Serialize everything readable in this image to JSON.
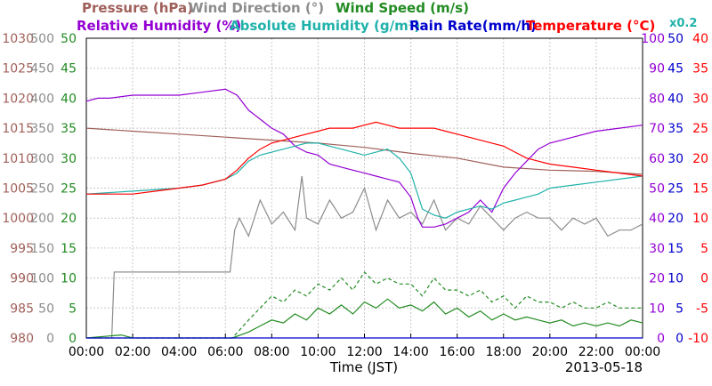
{
  "chart_data": {
    "type": "line",
    "date": "2013-05-18",
    "xlabel": "Time (JST)",
    "x_ticks": [
      "00:00",
      "02:00",
      "04:00",
      "06:00",
      "08:00",
      "10:00",
      "12:00",
      "14:00",
      "16:00",
      "18:00",
      "20:00",
      "22:00",
      "00:00"
    ],
    "x_range_hours": [
      0,
      24
    ],
    "grid": true,
    "legend": {
      "row1": [
        {
          "text": "Pressure (hPa)",
          "color": "#a0605a"
        },
        {
          "text": "Wind Direction (°)",
          "color": "#8c8c8c"
        },
        {
          "text": "Wind Speed (m/s)",
          "color": "#228b22"
        }
      ],
      "row2": [
        {
          "text": "Relative Humidity (%)",
          "color": "#9400d3"
        },
        {
          "text": "Absolute Humidity (g/m³)",
          "color": "#20b2aa"
        },
        {
          "text": "Rain Rate(mm/h)",
          "color": "#0000cd"
        },
        {
          "text": "Temperature (°C)",
          "color": "#ff0000"
        }
      ],
      "multiplier": {
        "text": "x0.2",
        "color": "#20b2aa"
      }
    },
    "axes": {
      "pressure": {
        "label": "Pressure (hPa)",
        "color": "#a0605a",
        "ticks": [
          "1030",
          "1025",
          "1020",
          "1015",
          "1010",
          "1005",
          "1000",
          "995",
          "990",
          "985",
          "980"
        ],
        "range": [
          980,
          1030
        ]
      },
      "wind_direction": {
        "label": "Wind Direction (°)",
        "color": "#8c8c8c",
        "ticks": [
          "500",
          "450",
          "400",
          "350",
          "300",
          "250",
          "200",
          "150",
          "100",
          "50",
          "0"
        ],
        "range": [
          0,
          500
        ]
      },
      "wind_speed": {
        "label": "Wind Speed (m/s)",
        "color": "#228b22",
        "ticks": [
          "50",
          "45",
          "40",
          "35",
          "30",
          "25",
          "20",
          "15",
          "10",
          "5",
          "0"
        ],
        "range": [
          0,
          50
        ]
      },
      "humidity": {
        "label": "Relative Humidity (%)",
        "color": "#9400d3",
        "ticks": [
          "100",
          "90",
          "80",
          "70",
          "60",
          "50",
          "40",
          "30",
          "20",
          "10",
          "0"
        ],
        "range": [
          0,
          100
        ]
      },
      "rain_rate": {
        "label": "Rain Rate(mm/h)",
        "color": "#0000cd",
        "ticks": [
          "50",
          "45",
          "40",
          "35",
          "30",
          "25",
          "20",
          "15",
          "10",
          "5",
          "0"
        ],
        "range": [
          0,
          50
        ]
      },
      "temperature": {
        "label": "Temperature (°C)",
        "color": "#ff0000",
        "ticks": [
          "40",
          "35",
          "30",
          "25",
          "20",
          "15",
          "10",
          "5",
          "0",
          "-5",
          "-10"
        ],
        "range": [
          -10,
          40
        ]
      }
    },
    "series": [
      {
        "name": "Pressure (hPa)",
        "axis": "pressure",
        "color": "#a0605a",
        "x": [
          0,
          2,
          4,
          6,
          8,
          10,
          12,
          13,
          14,
          16,
          18,
          20,
          22,
          24
        ],
        "y": [
          1015,
          1014.5,
          1014,
          1013.5,
          1013,
          1012.5,
          1011.8,
          1011.3,
          1010.8,
          1010,
          1008.5,
          1008,
          1007.8,
          1007.3
        ]
      },
      {
        "name": "Wind Direction (°)",
        "axis": "wind_direction",
        "color": "#8c8c8c",
        "x": [
          0,
          1.1,
          1.2,
          2,
          4,
          6.2,
          6.4,
          6.6,
          7,
          7.5,
          8,
          8.5,
          9,
          9.3,
          9.5,
          10,
          10.5,
          11,
          11.5,
          12,
          12.5,
          13,
          13.5,
          14,
          14.5,
          15,
          15.5,
          16,
          16.5,
          17,
          17.5,
          18,
          18.5,
          19,
          19.5,
          20,
          20.5,
          21,
          21.5,
          22,
          22.5,
          23,
          23.5,
          24
        ],
        "y": [
          0,
          0,
          110,
          110,
          110,
          110,
          180,
          200,
          170,
          230,
          190,
          210,
          180,
          270,
          200,
          190,
          230,
          200,
          210,
          250,
          180,
          230,
          200,
          210,
          190,
          230,
          180,
          200,
          190,
          220,
          200,
          180,
          200,
          210,
          200,
          200,
          180,
          200,
          190,
          200,
          170,
          180,
          180,
          190
        ]
      },
      {
        "name": "Wind Speed (m/s)",
        "axis": "wind_speed",
        "color": "#228b22",
        "x": [
          0,
          1.5,
          2,
          4,
          6.3,
          7,
          7.5,
          8,
          8.5,
          9,
          9.5,
          10,
          10.5,
          11,
          11.5,
          12,
          12.5,
          13,
          13.5,
          14,
          14.5,
          15,
          15.5,
          16,
          16.5,
          17,
          17.5,
          18,
          18.5,
          19,
          19.5,
          20,
          20.5,
          21,
          21.5,
          22,
          22.5,
          23,
          23.5,
          24
        ],
        "y": [
          0,
          0.5,
          0,
          0,
          0,
          1,
          2,
          3,
          2.5,
          4,
          3,
          5,
          4,
          5.5,
          4,
          6,
          5,
          6.5,
          5,
          5.5,
          4.5,
          6,
          4,
          5,
          3.5,
          4.5,
          3,
          4,
          3,
          3.5,
          3,
          2.5,
          3,
          2,
          2.5,
          2,
          2.5,
          2,
          3,
          2.5
        ]
      },
      {
        "name": "Wind Speed gust (m/s)",
        "axis": "wind_speed",
        "color": "#228b22",
        "dashed": true,
        "x": [
          0,
          6.3,
          7,
          7.5,
          8,
          8.5,
          9,
          9.5,
          10,
          10.5,
          11,
          11.5,
          12,
          12.5,
          13,
          13.5,
          14,
          14.5,
          15,
          15.5,
          16,
          16.5,
          17,
          17.5,
          18,
          18.5,
          19,
          19.5,
          20,
          20.5,
          21,
          21.5,
          22,
          22.5,
          23,
          23.5,
          24
        ],
        "y": [
          0,
          0,
          3,
          5,
          7,
          6,
          8,
          7,
          9,
          8,
          10,
          8,
          11,
          9,
          10,
          9,
          9,
          7,
          10,
          8,
          8,
          7,
          8,
          6,
          7,
          5,
          7,
          6,
          6,
          5,
          6,
          5,
          5,
          6,
          5,
          5,
          5
        ]
      },
      {
        "name": "Relative Humidity (%)",
        "axis": "humidity",
        "color": "#9400d3",
        "x": [
          0,
          0.5,
          1,
          2,
          3,
          4,
          5,
          6,
          6.5,
          7,
          7.5,
          8,
          8.5,
          9,
          9.5,
          10,
          10.5,
          11,
          11.5,
          12,
          12.5,
          13,
          13.5,
          14,
          14.3,
          14.5,
          15,
          15.5,
          16,
          16.5,
          17,
          17.5,
          18,
          18.5,
          19,
          19.5,
          20,
          21,
          22,
          23,
          24
        ],
        "y": [
          79,
          80,
          80,
          81,
          81,
          81,
          82,
          83,
          81,
          76,
          73,
          70,
          68,
          64,
          62,
          61,
          58,
          57,
          56,
          55,
          54,
          53,
          52,
          47,
          40,
          37,
          37,
          38,
          40,
          42,
          46,
          42,
          50,
          55,
          59,
          63,
          65,
          67,
          69,
          70,
          71
        ]
      },
      {
        "name": "Absolute Humidity (g/m³)",
        "axis": "humidity",
        "color": "#20b2aa",
        "x": [
          0,
          2,
          4,
          5,
          6,
          6.5,
          7,
          7.5,
          8,
          8.5,
          9,
          9.5,
          10,
          10.5,
          11,
          11.5,
          12,
          12.5,
          13,
          13.5,
          14,
          14.5,
          15,
          15.5,
          16,
          16.5,
          17,
          17.5,
          18,
          18.5,
          19,
          19.5,
          20,
          21,
          22,
          23,
          24
        ],
        "y": [
          48,
          49,
          50,
          51,
          53,
          55,
          59,
          61,
          62,
          63,
          64,
          65,
          65,
          64,
          63,
          62,
          61,
          62,
          63,
          60,
          55,
          43,
          41,
          40,
          42,
          43,
          44,
          43,
          45,
          46,
          47,
          48,
          50,
          51,
          52,
          53,
          54
        ]
      },
      {
        "name": "Rain Rate(mm/h)",
        "axis": "rain_rate",
        "color": "#0000cd",
        "x": [
          0,
          24
        ],
        "y": [
          0,
          0
        ]
      },
      {
        "name": "Temperature (°C)",
        "axis": "temperature",
        "color": "#ff0000",
        "x": [
          0,
          1,
          2,
          3,
          4,
          5,
          6,
          6.5,
          7,
          7.5,
          8,
          8.5,
          9,
          9.5,
          10,
          10.5,
          11,
          11.5,
          12,
          12.5,
          13,
          13.5,
          14,
          14.5,
          15,
          15.5,
          16,
          16.5,
          17,
          17.5,
          18,
          18.5,
          19,
          19.5,
          20,
          21,
          22,
          23,
          24
        ],
        "y": [
          14,
          14,
          14,
          14.5,
          15,
          15.5,
          16.5,
          18,
          20,
          21.5,
          22.5,
          23,
          23.5,
          24,
          24.5,
          25,
          25,
          25,
          25.5,
          26,
          25.5,
          25,
          25,
          25,
          25,
          24.5,
          24,
          23.5,
          23,
          22.5,
          22,
          21,
          20,
          19.5,
          19,
          18.5,
          18,
          17.5,
          17
        ]
      }
    ]
  }
}
